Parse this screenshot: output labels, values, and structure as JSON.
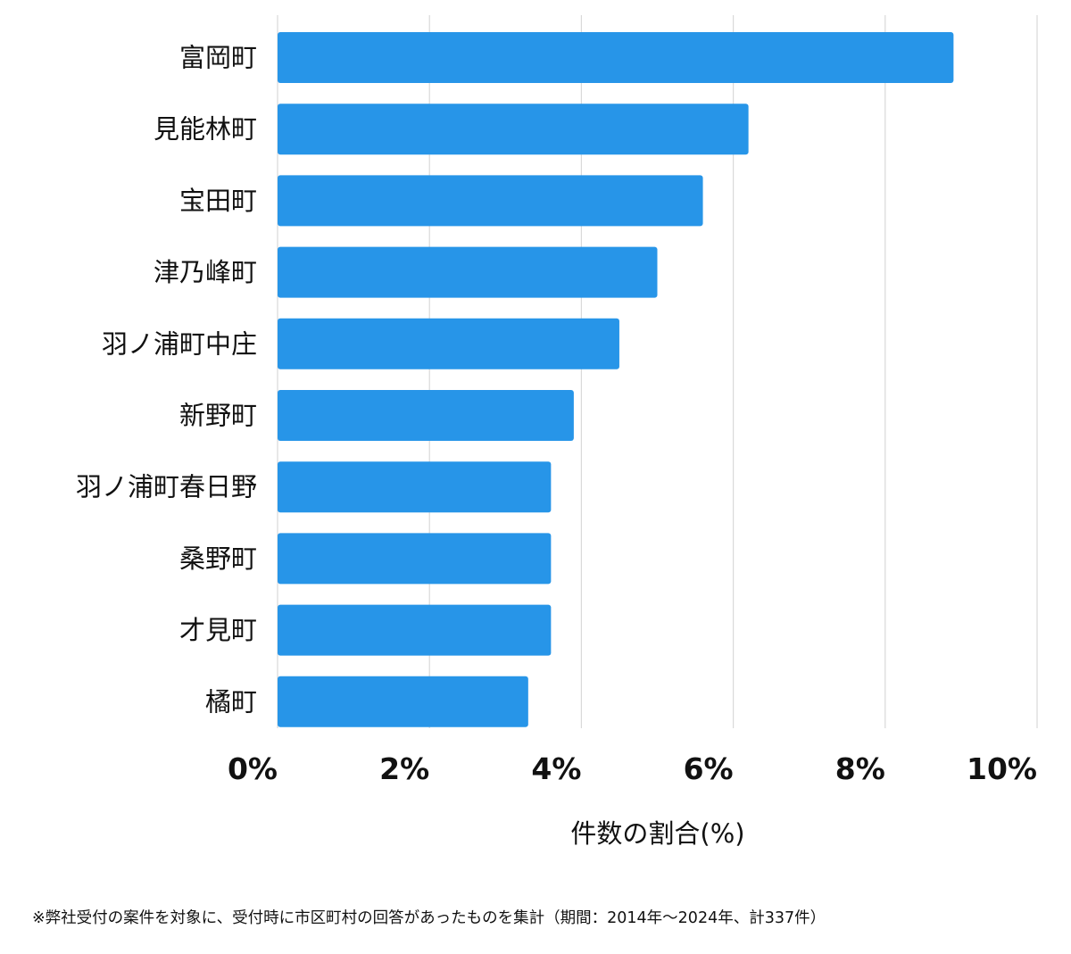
{
  "colors": {
    "bar": "#2795e8",
    "grid": "#d9d9d9",
    "text": "#111111"
  },
  "chart_data": {
    "type": "bar",
    "orientation": "horizontal",
    "categories": [
      "富岡町",
      "見能林町",
      "宝田町",
      "津乃峰町",
      "羽ノ浦町中庄",
      "新野町",
      "羽ノ浦町春日野",
      "桑野町",
      "才見町",
      "橘町"
    ],
    "values": [
      8.9,
      6.2,
      5.6,
      5.0,
      4.5,
      3.9,
      3.6,
      3.6,
      3.6,
      3.3
    ],
    "xlim": [
      0,
      10
    ],
    "xticks": [
      0,
      2,
      4,
      6,
      8,
      10
    ],
    "xtick_labels": [
      "0%",
      "2%",
      "4%",
      "6%",
      "8%",
      "10%"
    ],
    "xlabel": "件数の割合(%)",
    "ylabel": "",
    "grid": true
  },
  "footnote": "※弊社受付の案件を対象に、受付時に市区町村の回答があったものを集計（期間：2014年～2024年、計337件）"
}
